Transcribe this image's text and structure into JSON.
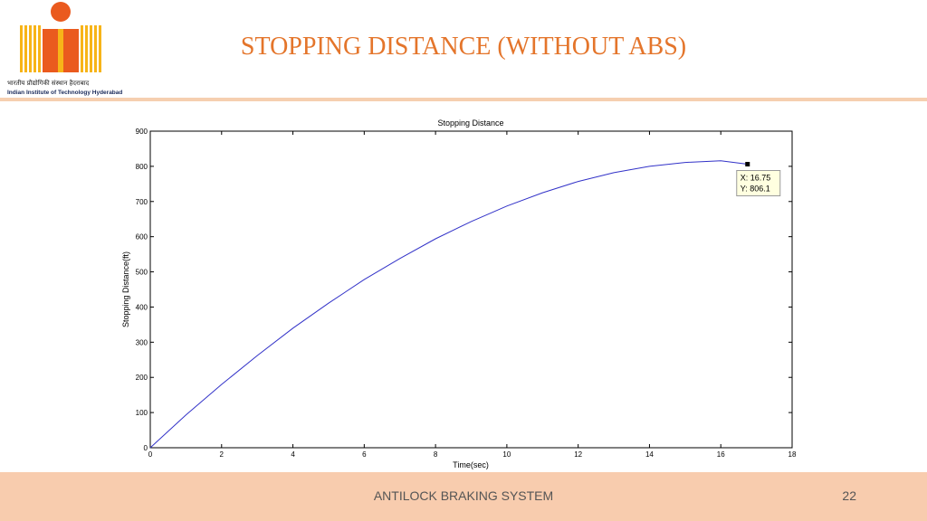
{
  "slide": {
    "title": "STOPPING DISTANCE (WITHOUT ABS)",
    "footer": "ANTILOCK BRAKING SYSTEM",
    "page_number": "22"
  },
  "logo": {
    "hindi_name": "भारतीय प्रौद्योगिकी संस्थान हैदराबाद",
    "english_name": "Indian Institute of Technology Hyderabad",
    "colors": {
      "orange": "#ea5a1e",
      "yellow": "#f7b418",
      "dark": "#e5701e"
    }
  },
  "chart_data": {
    "type": "line",
    "title": "Stopping Distance",
    "xlabel": "Time(sec)",
    "ylabel": "Stopping Distance(ft)",
    "xlim": [
      0,
      18
    ],
    "ylim": [
      0,
      900
    ],
    "xticks": [
      0,
      2,
      4,
      6,
      8,
      10,
      12,
      14,
      16,
      18
    ],
    "yticks": [
      0,
      100,
      200,
      300,
      400,
      500,
      600,
      700,
      800,
      900
    ],
    "grid": false,
    "series": [
      {
        "color": "#3232c8",
        "x": [
          0,
          1,
          2,
          3,
          4,
          5,
          6,
          7,
          8,
          9,
          10,
          11,
          12,
          13,
          14,
          15,
          16,
          16.75
        ],
        "y": [
          0,
          93,
          180,
          262,
          340,
          411,
          478,
          538,
          594,
          643,
          687,
          725,
          757,
          782,
          800,
          811,
          816,
          806.1
        ]
      }
    ],
    "datatip": {
      "x": 16.75,
      "y": 806.1,
      "x_label": "X: 16.75",
      "y_label": "Y: 806.1"
    }
  }
}
